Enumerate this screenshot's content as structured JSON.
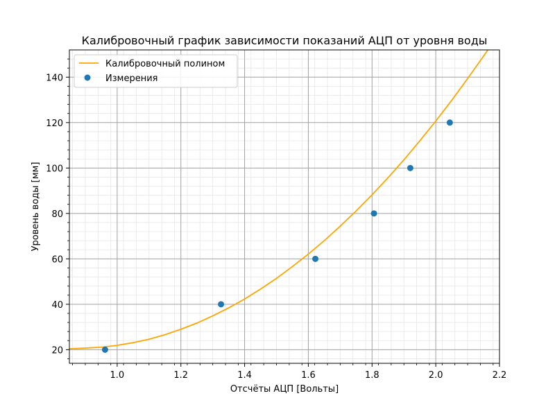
{
  "chart_data": {
    "type": "scatter",
    "title": "Калибровочный график зависимости показаний АЦП от уровня воды",
    "xlabel": "Отсчёты АЦП [Вольты]",
    "ylabel": "Уровень воды [мм]",
    "xlim": [
      0.85,
      2.2
    ],
    "ylim": [
      14,
      152
    ],
    "x_ticks": [
      1.0,
      1.2,
      1.4,
      1.6,
      1.8,
      2.0,
      2.2
    ],
    "x_tick_labels": [
      "1.0",
      "1.2",
      "1.4",
      "1.6",
      "1.8",
      "2.0",
      "2.2"
    ],
    "y_ticks": [
      20,
      40,
      60,
      80,
      100,
      120,
      140
    ],
    "y_tick_labels": [
      "20",
      "40",
      "60",
      "80",
      "100",
      "120",
      "140"
    ],
    "grid": "major and minor",
    "legend_position": "upper-left",
    "series": [
      {
        "name": "Калибровочный полином",
        "kind": "line",
        "color": "#ffa500",
        "x": [
          0.85,
          0.9,
          0.95,
          1.0,
          1.05,
          1.1,
          1.15,
          1.2,
          1.25,
          1.3,
          1.35,
          1.4,
          1.45,
          1.5,
          1.55,
          1.6,
          1.65,
          1.7,
          1.75,
          1.8,
          1.85,
          1.9,
          1.95,
          2.0,
          2.05,
          2.1,
          2.15,
          2.2
        ],
        "y": [
          20.4,
          20.7,
          21.1,
          21.9,
          23.1,
          24.6,
          26.6,
          29.0,
          31.7,
          34.9,
          38.4,
          42.3,
          46.7,
          51.4,
          56.6,
          62.1,
          68.0,
          74.4,
          81.1,
          88.2,
          95.7,
          103.6,
          112.0,
          120.7,
          129.8,
          139.4,
          149.3,
          159.6
        ]
      },
      {
        "name": "Измерения",
        "kind": "scatter",
        "color": "#1f77b4",
        "x": [
          0.962,
          1.326,
          1.622,
          1.806,
          1.92,
          2.044
        ],
        "y": [
          20,
          40,
          60,
          80,
          100,
          120
        ]
      }
    ]
  }
}
